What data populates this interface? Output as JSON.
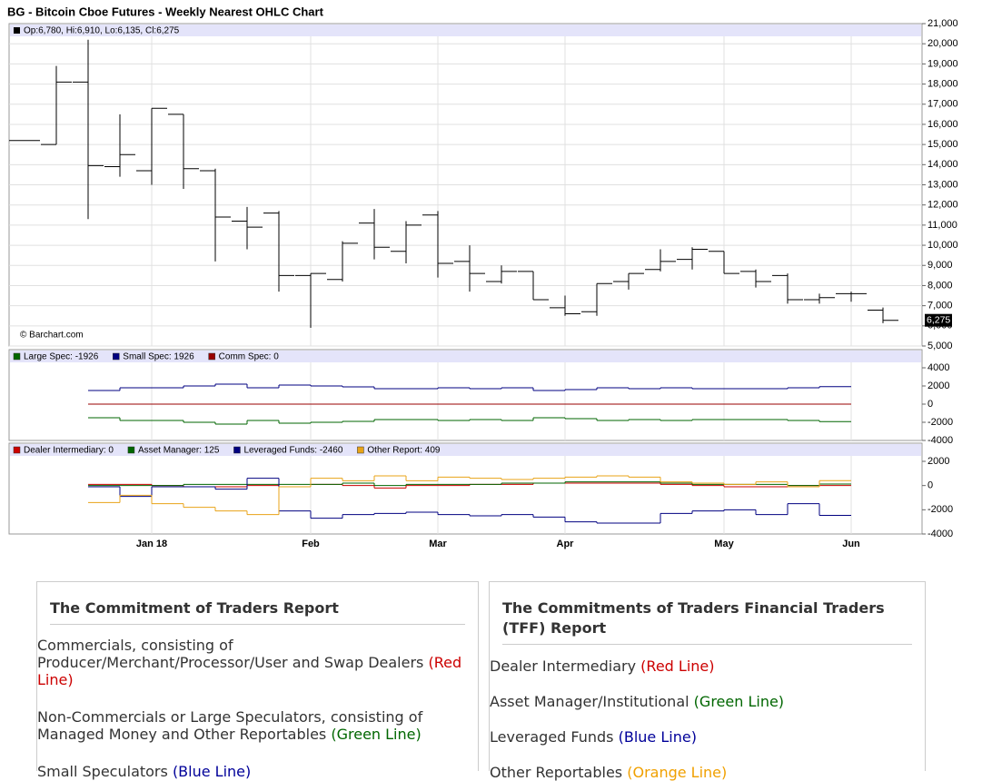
{
  "chart_data": [
    {
      "type": "ohlc",
      "title": "BG - Bitcoin Cboe Futures - Weekly Nearest OHLC Chart",
      "legend_text": "Op:6,780, Hi:6,910, Lo:6,135, Cl:6,275",
      "annotation": "© Barchart.com",
      "color": "#000000",
      "ylim": [
        5000,
        21000
      ],
      "yticks": [
        {
          "value": 5000,
          "label": "5,000"
        },
        {
          "value": 6000,
          "label": "6,000"
        },
        {
          "value": 7000,
          "label": "7,000"
        },
        {
          "value": 8000,
          "label": "8,000"
        },
        {
          "value": 9000,
          "label": "9,000"
        },
        {
          "value": 10000,
          "label": "10,000"
        },
        {
          "value": 11000,
          "label": "11,000"
        },
        {
          "value": 12000,
          "label": "12,000"
        },
        {
          "value": 13000,
          "label": "13,000"
        },
        {
          "value": 14000,
          "label": "14,000"
        },
        {
          "value": 15000,
          "label": "15,000"
        },
        {
          "value": 16000,
          "label": "16,000"
        },
        {
          "value": 17000,
          "label": "17,000"
        },
        {
          "value": 18000,
          "label": "18,000"
        },
        {
          "value": 19000,
          "label": "19,000"
        },
        {
          "value": 20000,
          "label": "20,000"
        },
        {
          "value": 21000,
          "label": "21,000"
        }
      ],
      "grid": true,
      "open": [
        15200,
        15000,
        18100,
        13900,
        13700,
        16500,
        13700,
        11200,
        11600,
        8500,
        8300,
        11100,
        9700,
        11500,
        9200,
        8200,
        8700,
        6900,
        6700,
        8200,
        8800,
        9300,
        9700,
        8700,
        8500,
        7300,
        7600,
        6780
      ],
      "high": [
        15200,
        18900,
        20200,
        16500,
        16800,
        16500,
        13800,
        11900,
        11700,
        8600,
        10200,
        11800,
        11200,
        11700,
        10000,
        9000,
        8700,
        7500,
        8100,
        8600,
        9800,
        9900,
        9700,
        8800,
        8600,
        7600,
        7700,
        6910
      ],
      "low": [
        15200,
        15000,
        11300,
        13400,
        13000,
        12800,
        9200,
        9800,
        7700,
        5900,
        8200,
        9300,
        9100,
        8400,
        7700,
        8100,
        7300,
        6500,
        6500,
        7800,
        8700,
        8800,
        8600,
        7900,
        7100,
        7100,
        7200,
        6135
      ],
      "close": [
        15200,
        18100,
        13950,
        14500,
        16800,
        13800,
        11400,
        10900,
        8500,
        8600,
        10100,
        9900,
        11000,
        9100,
        8600,
        8700,
        7300,
        6600,
        8100,
        8600,
        9200,
        9800,
        8600,
        8200,
        7300,
        7400,
        7600,
        6275
      ],
      "last_price": {
        "value": 6275,
        "label": "6,275"
      }
    },
    {
      "type": "step",
      "ylim": [
        -4000,
        6000
      ],
      "yticks": [
        4000,
        2000,
        0,
        -2000,
        -4000
      ],
      "series": [
        {
          "name": "Large Spec",
          "legend_label": "Large Spec: -1926",
          "color": "#006600",
          "values": [
            null,
            null,
            null,
            -1500,
            -1800,
            -1800,
            -2000,
            -2200,
            -1800,
            -2100,
            -2000,
            -1900,
            -1700,
            -1700,
            -1800,
            -1700,
            -1800,
            -1500,
            -1600,
            -1800,
            -1700,
            -1800,
            -1700,
            -1700,
            -1700,
            -1800,
            -1926,
            null
          ]
        },
        {
          "name": "Small Spec",
          "legend_label": "Small Spec: 1926",
          "color": "#000080",
          "values": [
            null,
            null,
            null,
            1500,
            1800,
            1800,
            2000,
            2200,
            1800,
            2100,
            2000,
            1900,
            1700,
            1700,
            1800,
            1700,
            1800,
            1500,
            1600,
            1800,
            1700,
            1800,
            1700,
            1700,
            1700,
            1800,
            1926,
            null
          ]
        },
        {
          "name": "Comm Spec",
          "legend_label": "Comm Spec: 0",
          "color": "#990000",
          "values": [
            null,
            null,
            null,
            0,
            0,
            0,
            0,
            0,
            0,
            0,
            0,
            0,
            0,
            0,
            0,
            0,
            0,
            0,
            0,
            0,
            0,
            0,
            0,
            0,
            0,
            0,
            0,
            null
          ]
        }
      ]
    },
    {
      "type": "step",
      "ylim": [
        -4000,
        3500
      ],
      "yticks": [
        2000,
        0,
        -2000,
        -4000
      ],
      "categories": [
        null,
        null,
        null,
        null,
        "Jan 18",
        null,
        null,
        null,
        null,
        "Feb",
        null,
        null,
        null,
        "Mar",
        null,
        null,
        null,
        "Apr",
        null,
        null,
        null,
        null,
        "May",
        null,
        null,
        null,
        "Jun",
        null
      ],
      "series": [
        {
          "name": "Dealer Intermediary",
          "legend_label": "Dealer Intermediary: 0",
          "color": "#cc0000",
          "values": [
            null,
            null,
            null,
            100,
            100,
            0,
            -100,
            -100,
            0,
            -100,
            100,
            0,
            -200,
            0,
            0,
            100,
            100,
            200,
            200,
            200,
            200,
            100,
            0,
            -100,
            -100,
            0,
            0,
            null
          ]
        },
        {
          "name": "Asset Manager",
          "legend_label": "Asset Manager: 125",
          "color": "#006600",
          "values": [
            null,
            null,
            null,
            0,
            0,
            0,
            100,
            100,
            100,
            100,
            100,
            200,
            0,
            100,
            100,
            100,
            200,
            200,
            300,
            300,
            300,
            200,
            100,
            100,
            100,
            0,
            125,
            null
          ]
        },
        {
          "name": "Leveraged Funds",
          "legend_label": "Leveraged Funds: -2460",
          "color": "#000080",
          "values": [
            null,
            null,
            null,
            -100,
            -900,
            -100,
            -100,
            -300,
            600,
            -2100,
            -2700,
            -2400,
            -2300,
            -2200,
            -2400,
            -2500,
            -2400,
            -2600,
            -3000,
            -3100,
            -3100,
            -2300,
            -2100,
            -2000,
            -2400,
            -1500,
            -2460,
            null
          ]
        },
        {
          "name": "Other Report",
          "legend_label": "Other Report: 409",
          "color": "#e8a317",
          "values": [
            null,
            null,
            null,
            -1400,
            -800,
            -1500,
            -1800,
            -2100,
            -2400,
            -100,
            600,
            400,
            800,
            400,
            700,
            600,
            500,
            600,
            700,
            800,
            700,
            300,
            200,
            100,
            300,
            -100,
            409,
            null
          ]
        }
      ]
    }
  ],
  "cot_report": {
    "title": "The Commitment of Traders Report",
    "items": [
      {
        "text": "Commercials, consisting of Producer/Merchant/Processor/User and Swap Dealers",
        "line": "(Red Line)",
        "color": "#cc0000"
      },
      {
        "text": "Non-Commercials or Large Speculators, consisting of Managed Money and Other Reportables",
        "line": "(Green Line)",
        "color": "#006600"
      },
      {
        "text": "Small Speculators",
        "line": "(Blue Line)",
        "color": "#000099"
      }
    ]
  },
  "tff_report": {
    "title": "The Commitments of Traders Financial Traders (TFF) Report",
    "items": [
      {
        "text": "Dealer Intermediary",
        "line": "(Red Line)",
        "color": "#cc0000"
      },
      {
        "text": "Asset Manager/Institutional",
        "line": "(Green Line)",
        "color": "#006600"
      },
      {
        "text": "Leveraged Funds",
        "line": "(Blue Line)",
        "color": "#000099"
      },
      {
        "text": "Other Reportables",
        "line": "(Orange Line)",
        "color": "#f0a000"
      }
    ]
  }
}
